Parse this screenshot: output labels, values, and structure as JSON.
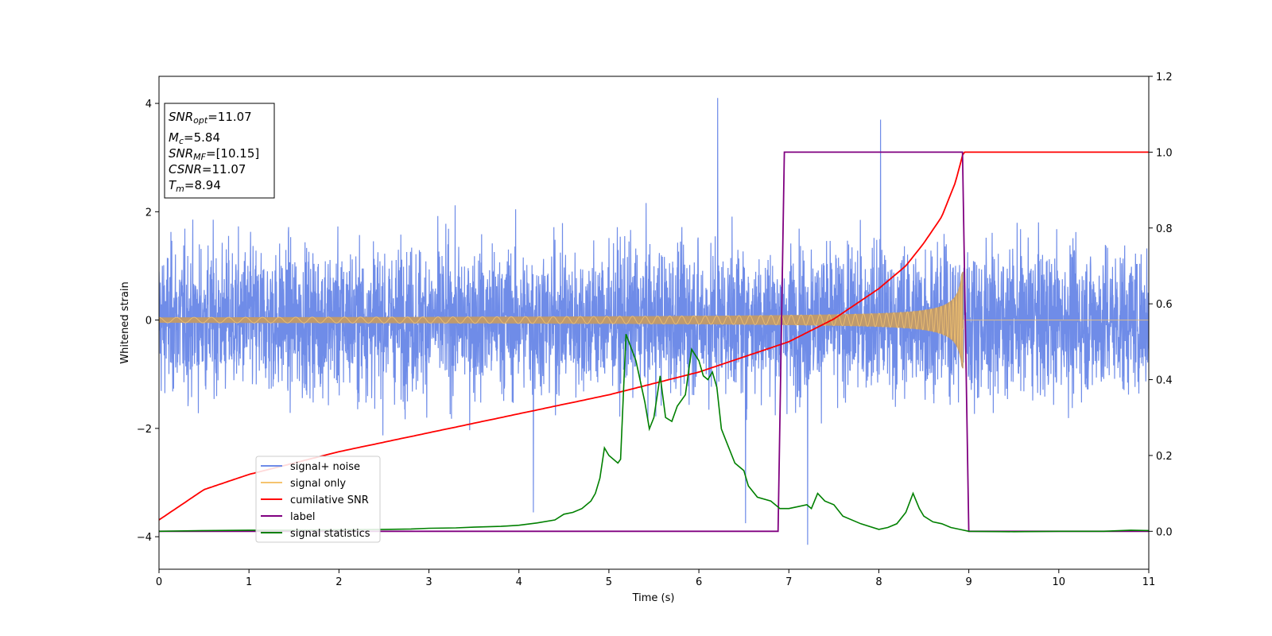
{
  "colors": {
    "signal_noise": "#6f8ce8",
    "signal_only": "#f5c46f",
    "signal_fill": "#bf9a6e",
    "cumulative_snr": "#ff0000",
    "label": "#800080",
    "signal_statistics": "#008000"
  },
  "chart_data": {
    "type": "line",
    "xlabel": "Time (s)",
    "ylabel_left": "Whitened strain",
    "ylabel_right": "",
    "xlim": [
      0,
      11
    ],
    "ylim_left": [
      -4.6,
      4.5
    ],
    "ylim_right": [
      -0.1,
      1.2
    ],
    "x_ticks": [
      "0",
      "1",
      "2",
      "3",
      "4",
      "5",
      "6",
      "7",
      "8",
      "9",
      "10",
      "11"
    ],
    "y_ticks_left": [
      "−4",
      "−2",
      "0",
      "2",
      "4"
    ],
    "y_ticks_right": [
      "0.0",
      "0.2",
      "0.4",
      "0.6",
      "0.8",
      "1.0",
      "1.2"
    ],
    "grid": false,
    "legend_position": "lower-left",
    "legend": [
      "signal+ noise",
      "signal only",
      "cumilative SNR",
      "label",
      "signal statistics"
    ],
    "info_box": {
      "snr_opt": {
        "var": "SNR",
        "sub": "opt",
        "value": "=11.07"
      },
      "mc": {
        "var": "M",
        "sub": "c",
        "value": "=5.84"
      },
      "snr_mf": {
        "var": "SNR",
        "sub": "MF",
        "value": "=[10.15]"
      },
      "csnr": {
        "var": "CSNR",
        "value": "=11.07"
      },
      "tm": {
        "var": "T",
        "sub": "m",
        "value": "=8.94"
      }
    },
    "series": [
      {
        "name": "signal+ noise",
        "axis": "left",
        "noise_std": 0.95,
        "noise_envelope_max": 3.7,
        "notable_peaks": [
          [
            6.21,
            4.1
          ],
          [
            8.02,
            3.7
          ],
          [
            7.21,
            -4.15
          ],
          [
            4.16,
            -3.55
          ],
          [
            6.52,
            -3.75
          ]
        ]
      },
      {
        "name": "signal only",
        "axis": "left",
        "t_start": 0,
        "t_merge": 8.94,
        "amp_start": 0.05,
        "amp_merge": 1.35
      },
      {
        "name": "cumilative SNR",
        "axis": "right",
        "x": [
          0,
          0.5,
          1,
          2,
          3,
          4,
          5,
          6,
          6.5,
          7,
          7.5,
          8,
          8.3,
          8.5,
          8.7,
          8.85,
          8.94,
          11
        ],
        "y": [
          0.03,
          0.11,
          0.15,
          0.21,
          0.26,
          0.31,
          0.36,
          0.42,
          0.46,
          0.5,
          0.56,
          0.64,
          0.7,
          0.76,
          0.83,
          0.92,
          1.0,
          1.0
        ]
      },
      {
        "name": "label",
        "axis": "right",
        "x": [
          0,
          6.88,
          6.95,
          8.93,
          9.0,
          11
        ],
        "y": [
          0,
          0,
          1,
          1,
          0,
          0
        ]
      },
      {
        "name": "signal statistics",
        "axis": "right",
        "x": [
          0,
          0.5,
          1,
          1.5,
          2,
          2.5,
          2.8,
          3.0,
          3.3,
          3.5,
          3.8,
          4.0,
          4.2,
          4.4,
          4.5,
          4.6,
          4.7,
          4.8,
          4.85,
          4.9,
          4.95,
          5.0,
          5.1,
          5.13,
          5.19,
          5.3,
          5.4,
          5.45,
          5.5,
          5.57,
          5.63,
          5.7,
          5.76,
          5.85,
          5.92,
          6.0,
          6.05,
          6.1,
          6.15,
          6.2,
          6.25,
          6.3,
          6.4,
          6.5,
          6.55,
          6.65,
          6.8,
          6.9,
          7.0,
          7.1,
          7.2,
          7.25,
          7.32,
          7.4,
          7.5,
          7.6,
          7.8,
          8.0,
          8.1,
          8.2,
          8.3,
          8.38,
          8.45,
          8.5,
          8.6,
          8.7,
          8.8,
          8.9,
          9.0,
          9.5,
          10,
          10.5,
          10.8,
          11
        ],
        "y": [
          0.0,
          0.002,
          0.003,
          0.003,
          0.004,
          0.005,
          0.006,
          0.008,
          0.009,
          0.011,
          0.013,
          0.016,
          0.022,
          0.03,
          0.045,
          0.05,
          0.06,
          0.08,
          0.1,
          0.14,
          0.22,
          0.2,
          0.18,
          0.19,
          0.52,
          0.45,
          0.34,
          0.27,
          0.3,
          0.41,
          0.3,
          0.29,
          0.33,
          0.36,
          0.48,
          0.45,
          0.41,
          0.4,
          0.42,
          0.38,
          0.27,
          0.24,
          0.18,
          0.16,
          0.12,
          0.09,
          0.08,
          0.06,
          0.06,
          0.065,
          0.07,
          0.06,
          0.1,
          0.08,
          0.07,
          0.04,
          0.02,
          0.005,
          0.01,
          0.02,
          0.05,
          0.1,
          0.06,
          0.04,
          0.025,
          0.02,
          0.01,
          0.005,
          0.0,
          -0.001,
          0.0,
          0.0,
          0.003,
          0.002
        ]
      }
    ]
  }
}
